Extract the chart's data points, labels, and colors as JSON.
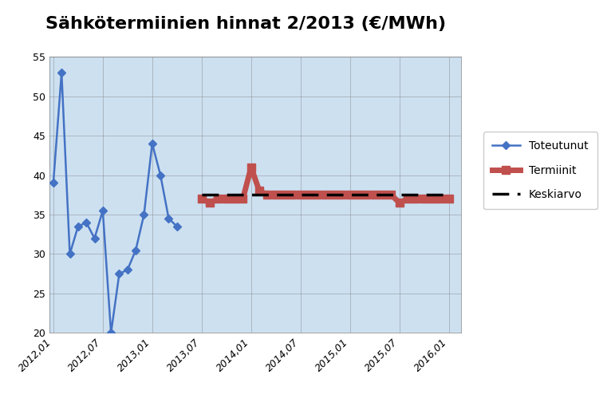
{
  "title": "Sähkötermiinien hinnat 2/2013 (€/MWh)",
  "title_fontsize": 16,
  "title_fontweight": "bold",
  "background_color": "#cce0f0",
  "fig_background": "#ffffff",
  "ylim": [
    20,
    55
  ],
  "yticks": [
    20,
    25,
    30,
    35,
    40,
    45,
    50,
    55
  ],
  "xtick_labels": [
    "2012,01",
    "2012,07",
    "2013,01",
    "2013,07",
    "2014,01",
    "2014,07",
    "2015,01",
    "2015,07",
    "2016,01"
  ],
  "xtick_positions": [
    0,
    6,
    12,
    18,
    24,
    30,
    36,
    42,
    48
  ],
  "xlim": [
    -0.5,
    49.5
  ],
  "toteutunut_x": [
    0,
    1,
    2,
    3,
    4,
    5,
    6,
    7,
    8,
    9,
    10,
    11,
    12,
    13,
    14,
    15
  ],
  "toteutunut_y": [
    39.0,
    53.0,
    30.0,
    33.5,
    34.0,
    32.0,
    35.5,
    20.0,
    27.5,
    28.0,
    30.5,
    35.0,
    44.0,
    40.0,
    34.5,
    33.5
  ],
  "toteutunut_color": "#4472C4",
  "termiinit_x": [
    18,
    19,
    20,
    21,
    22,
    23,
    24,
    25,
    26,
    27,
    28,
    29,
    30,
    31,
    32,
    33,
    34,
    35,
    36,
    37,
    38,
    39,
    40,
    41,
    42,
    43,
    44,
    45,
    46,
    47,
    48
  ],
  "termiinit_y": [
    37.0,
    36.5,
    37.0,
    37.0,
    37.0,
    37.0,
    41.0,
    38.0,
    37.5,
    37.5,
    37.5,
    37.5,
    37.5,
    37.5,
    37.5,
    37.5,
    37.5,
    37.5,
    37.5,
    37.5,
    37.5,
    37.5,
    37.5,
    37.5,
    36.5,
    37.0,
    37.0,
    37.0,
    37.0,
    37.0,
    37.0
  ],
  "termiinit_color": "#C0504D",
  "keskiarvo_x_start": 18,
  "keskiarvo_x_end": 48,
  "keskiarvo_y": 37.5,
  "keskiarvo_color": "#000000",
  "grid_color": "#808080",
  "legend_labels": [
    "Toteutunut",
    "Termiinit",
    "Keskiarvo"
  ],
  "legend_fontsize": 10
}
